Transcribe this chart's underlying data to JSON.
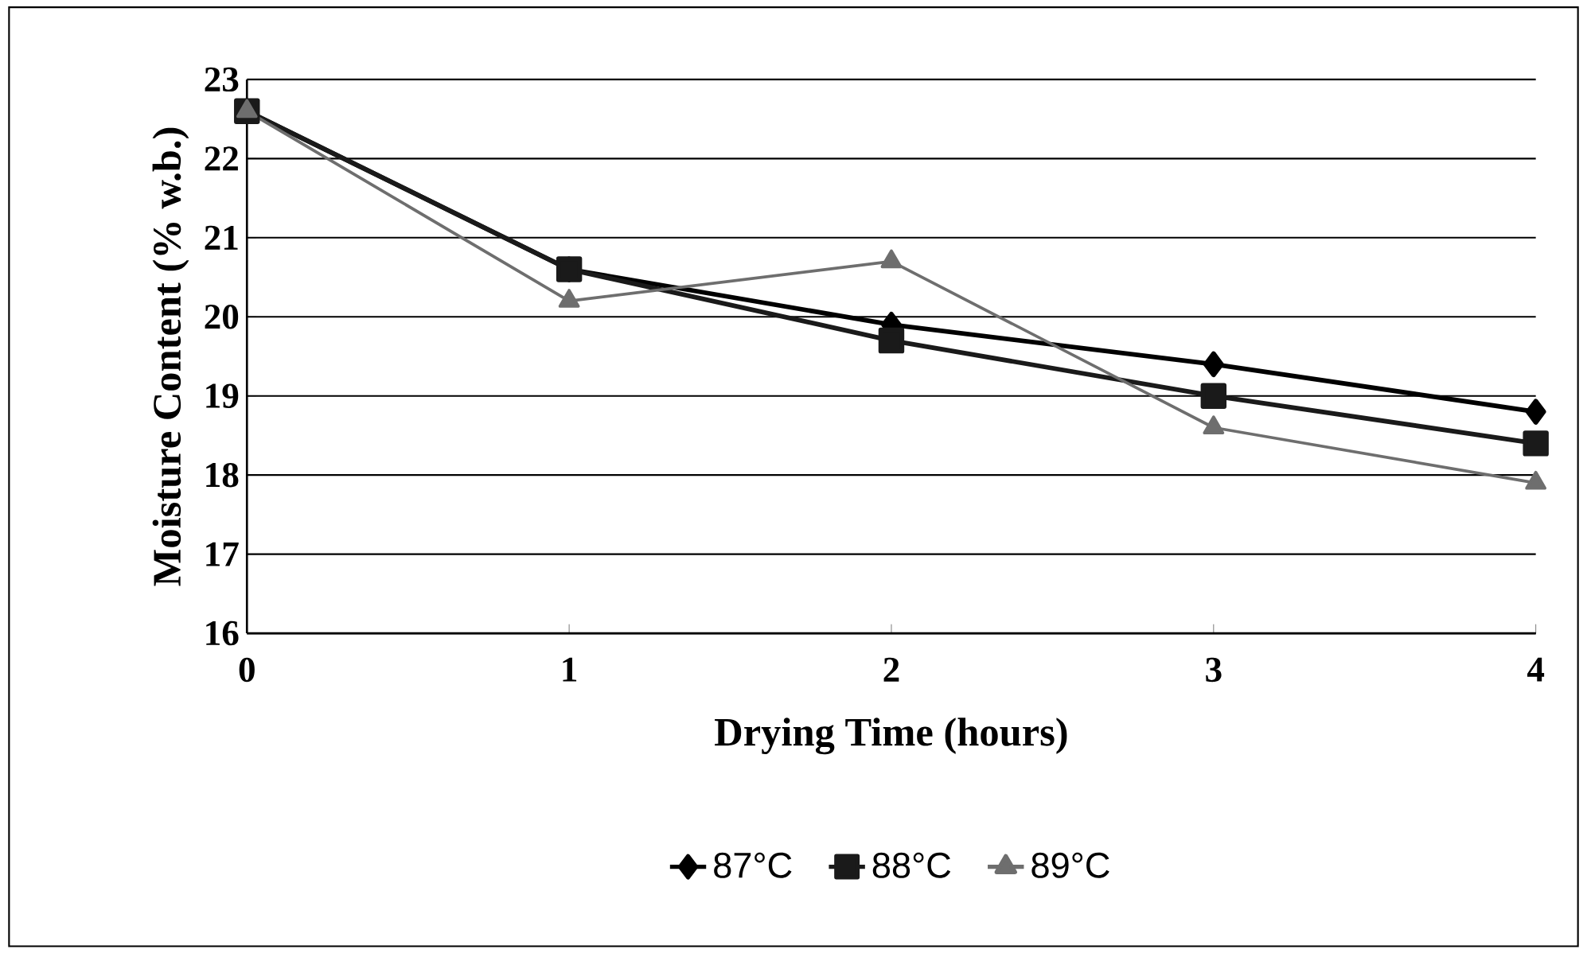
{
  "chart_data": {
    "type": "line",
    "xlabel": "Drying Time (hours)",
    "ylabel": "Moisture Content (% w.b.)",
    "x": [
      0,
      1,
      2,
      3,
      4
    ],
    "xlim": [
      0,
      4
    ],
    "xticks": [
      0,
      1,
      2,
      3,
      4
    ],
    "ylim": [
      16,
      23
    ],
    "yticks": [
      16,
      17,
      18,
      19,
      20,
      21,
      22,
      23
    ],
    "grid": "y",
    "legend": "bottom",
    "series": [
      {
        "name": "87°C",
        "color": "#000000",
        "marker": "diamond",
        "values": [
          22.6,
          20.6,
          19.9,
          19.4,
          18.8
        ]
      },
      {
        "name": "88°C",
        "color": "#1a1a1a",
        "marker": "square",
        "values": [
          22.6,
          20.6,
          19.7,
          19.0,
          18.4
        ]
      },
      {
        "name": "89°C",
        "color": "#6e6e6e",
        "marker": "triangle",
        "values": [
          22.6,
          20.2,
          20.7,
          18.6,
          17.9
        ]
      }
    ]
  }
}
